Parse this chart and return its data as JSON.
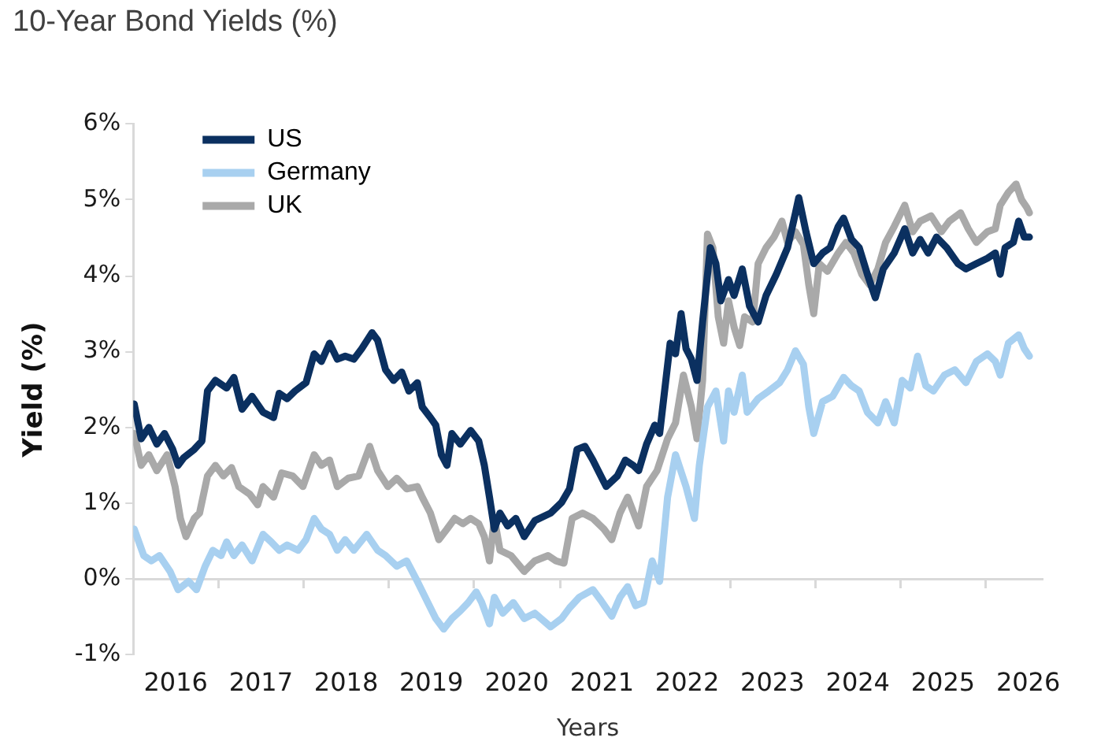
{
  "chart_data": {
    "type": "line",
    "title": "10-Year Bond Yields (%)",
    "xlabel": "Years",
    "ylabel": "Yield (%)",
    "xlim": [
      "2016-01-01",
      "2026-09-01"
    ],
    "xticks": [
      {
        "value": "2016-07-01",
        "label": "2016"
      },
      {
        "value": "2017-01-01",
        "label": null
      },
      {
        "value": "2017-07-01",
        "label": "2017"
      },
      {
        "value": "2018-01-01",
        "label": null
      },
      {
        "value": "2018-07-01",
        "label": "2018"
      },
      {
        "value": "2019-01-01",
        "label": null
      },
      {
        "value": "2019-07-01",
        "label": "2019"
      },
      {
        "value": "2020-01-01",
        "label": null
      },
      {
        "value": "2020-07-01",
        "label": "2020"
      },
      {
        "value": "2021-01-01",
        "label": null
      },
      {
        "value": "2021-07-01",
        "label": "2021"
      },
      {
        "value": "2022-01-01",
        "label": null
      },
      {
        "value": "2022-07-01",
        "label": "2022"
      },
      {
        "value": "2023-01-01",
        "label": null
      },
      {
        "value": "2023-07-01",
        "label": "2023"
      },
      {
        "value": "2024-01-01",
        "label": null
      },
      {
        "value": "2024-07-01",
        "label": "2024"
      },
      {
        "value": "2025-01-01",
        "label": null
      },
      {
        "value": "2025-07-01",
        "label": "2025"
      },
      {
        "value": "2026-01-01",
        "label": null
      },
      {
        "value": "2026-07-01",
        "label": "2026"
      }
    ],
    "ylim": [
      -1,
      6
    ],
    "yticks": [
      {
        "value": -1,
        "label": "-1%"
      },
      {
        "value": 0,
        "label": "0%"
      },
      {
        "value": 1,
        "label": "1%"
      },
      {
        "value": 2,
        "label": "2%"
      },
      {
        "value": 3,
        "label": "3%"
      },
      {
        "value": 4,
        "label": "4%"
      },
      {
        "value": 5,
        "label": "5%"
      },
      {
        "value": 6,
        "label": "6%"
      }
    ],
    "ref_lines": [
      {
        "axis": "y",
        "value": 0,
        "color": "#d9d9d9"
      }
    ],
    "legend": "top left",
    "series": [
      {
        "name": "US",
        "color": "#0b3060",
        "x": [
          "2016-01-05",
          "2016-02-04",
          "2016-03-08",
          "2016-04-11",
          "2016-05-14",
          "2016-06-18",
          "2016-07-11",
          "2016-08-04",
          "2016-09-18",
          "2016-10-21",
          "2016-11-14",
          "2016-12-18",
          "2017-02-04",
          "2017-03-07",
          "2017-04-11",
          "2017-05-24",
          "2017-07-10",
          "2017-08-24",
          "2017-09-17",
          "2017-10-21",
          "2017-11-24",
          "2018-01-10",
          "2018-02-14",
          "2018-03-17",
          "2018-04-21",
          "2018-05-24",
          "2018-06-27",
          "2018-08-03",
          "2018-09-06",
          "2018-10-20",
          "2018-11-13",
          "2018-12-17",
          "2019-01-20",
          "2019-02-24",
          "2019-03-27",
          "2019-05-02",
          "2019-05-23",
          "2019-06-27",
          "2019-07-20",
          "2019-08-13",
          "2019-09-06",
          "2019-09-27",
          "2019-11-02",
          "2019-12-16",
          "2020-01-20",
          "2020-02-13",
          "2020-03-06",
          "2020-03-27",
          "2020-04-20",
          "2020-05-23",
          "2020-06-27",
          "2020-08-02",
          "2020-09-16",
          "2020-11-23",
          "2021-01-09",
          "2021-02-12",
          "2021-03-16",
          "2021-04-19",
          "2021-05-23",
          "2021-07-19",
          "2021-09-05",
          "2021-10-09",
          "2021-11-12",
          "2021-12-05",
          "2022-01-08",
          "2022-02-12",
          "2022-03-05",
          "2022-04-19",
          "2022-05-12",
          "2022-06-05",
          "2022-06-26",
          "2022-07-19",
          "2022-08-12",
          "2022-09-05",
          "2022-10-08",
          "2022-11-01",
          "2022-11-22",
          "2022-12-25",
          "2023-01-18",
          "2023-02-22",
          "2023-03-25",
          "2023-05-01",
          "2023-06-04",
          "2023-07-18",
          "2023-09-04",
          "2023-10-08",
          "2023-10-22",
          "2023-11-22",
          "2023-12-25",
          "2024-02-01",
          "2024-03-04",
          "2024-04-08",
          "2024-05-01",
          "2024-06-04",
          "2024-07-07",
          "2024-08-11",
          "2024-09-14",
          "2024-10-18",
          "2024-12-04",
          "2025-01-18",
          "2025-02-21",
          "2025-03-25",
          "2025-04-28",
          "2025-06-03",
          "2025-07-17",
          "2025-09-03",
          "2025-10-07",
          "2025-11-21",
          "2026-01-07",
          "2026-02-10",
          "2026-03-03",
          "2026-03-24",
          "2026-04-28",
          "2026-05-21",
          "2026-06-14",
          "2026-07-06"
        ],
        "values": [
          2.31,
          1.85,
          2.0,
          1.78,
          1.92,
          1.71,
          1.5,
          1.6,
          1.71,
          1.82,
          2.48,
          2.62,
          2.52,
          2.66,
          2.24,
          2.41,
          2.2,
          2.13,
          2.45,
          2.38,
          2.48,
          2.59,
          2.97,
          2.87,
          3.11,
          2.9,
          2.94,
          2.9,
          3.04,
          3.25,
          3.15,
          2.76,
          2.62,
          2.73,
          2.48,
          2.59,
          2.27,
          2.13,
          2.03,
          1.64,
          1.5,
          1.92,
          1.78,
          1.96,
          1.82,
          1.5,
          1.08,
          0.66,
          0.87,
          0.7,
          0.8,
          0.56,
          0.77,
          0.87,
          1.01,
          1.19,
          1.71,
          1.75,
          1.57,
          1.22,
          1.36,
          1.57,
          1.5,
          1.43,
          1.78,
          2.03,
          1.92,
          3.11,
          2.97,
          3.5,
          3.04,
          2.9,
          2.62,
          3.39,
          4.37,
          4.16,
          3.67,
          3.95,
          3.74,
          4.09,
          3.6,
          3.39,
          3.74,
          4.02,
          4.37,
          4.83,
          5.03,
          4.58,
          4.16,
          4.3,
          4.37,
          4.65,
          4.76,
          4.48,
          4.37,
          4.02,
          3.71,
          4.09,
          4.3,
          4.62,
          4.3,
          4.48,
          4.3,
          4.51,
          4.37,
          4.16,
          4.09,
          4.16,
          4.23,
          4.3,
          4.02,
          4.37,
          4.44,
          4.72,
          4.51,
          4.51
        ]
      },
      {
        "name": "Germany",
        "color": "#a8d0f0",
        "x": [
          "2016-01-05",
          "2016-02-15",
          "2016-03-18",
          "2016-04-22",
          "2016-06-07",
          "2016-07-11",
          "2016-08-25",
          "2016-09-28",
          "2016-11-04",
          "2016-12-07",
          "2017-01-11",
          "2017-02-04",
          "2017-03-07",
          "2017-04-11",
          "2017-05-24",
          "2017-07-10",
          "2017-08-14",
          "2017-09-17",
          "2017-10-21",
          "2017-12-07",
          "2018-01-10",
          "2018-02-14",
          "2018-03-17",
          "2018-04-21",
          "2018-05-24",
          "2018-06-27",
          "2018-08-03",
          "2018-09-27",
          "2018-11-13",
          "2018-12-17",
          "2019-02-03",
          "2019-03-17",
          "2019-05-02",
          "2019-06-16",
          "2019-07-20",
          "2019-08-23",
          "2019-09-27",
          "2019-11-02",
          "2019-12-06",
          "2020-01-09",
          "2020-02-02",
          "2020-03-06",
          "2020-03-27",
          "2020-05-02",
          "2020-06-16",
          "2020-08-02",
          "2020-09-16",
          "2020-11-23",
          "2021-01-09",
          "2021-02-12",
          "2021-03-26",
          "2021-05-23",
          "2021-06-26",
          "2021-08-12",
          "2021-09-16",
          "2021-10-19",
          "2021-11-22",
          "2021-12-26",
          "2022-02-01",
          "2022-03-05",
          "2022-04-08",
          "2022-05-12",
          "2022-06-26",
          "2022-08-01",
          "2022-08-22",
          "2022-09-26",
          "2022-11-01",
          "2022-12-04",
          "2022-12-25",
          "2023-01-18",
          "2023-02-22",
          "2023-03-15",
          "2023-05-01",
          "2023-06-15",
          "2023-08-01",
          "2023-09-04",
          "2023-10-08",
          "2023-11-11",
          "2023-12-04",
          "2023-12-25",
          "2024-02-01",
          "2024-03-15",
          "2024-05-01",
          "2024-06-04",
          "2024-07-07",
          "2024-08-11",
          "2024-09-25",
          "2024-10-28",
          "2024-12-04",
          "2025-01-07",
          "2025-02-11",
          "2025-03-14",
          "2025-04-18",
          "2025-05-21",
          "2025-07-07",
          "2025-08-21",
          "2025-10-07",
          "2025-11-21",
          "2026-01-07",
          "2026-02-10",
          "2026-03-03",
          "2026-04-07",
          "2026-05-21",
          "2026-06-14",
          "2026-07-06"
        ],
        "values": [
          0.66,
          0.31,
          0.24,
          0.31,
          0.1,
          -0.14,
          -0.03,
          -0.14,
          0.17,
          0.38,
          0.31,
          0.49,
          0.31,
          0.45,
          0.24,
          0.59,
          0.49,
          0.38,
          0.45,
          0.38,
          0.52,
          0.8,
          0.66,
          0.59,
          0.38,
          0.52,
          0.38,
          0.59,
          0.38,
          0.31,
          0.17,
          0.24,
          -0.03,
          -0.31,
          -0.52,
          -0.66,
          -0.52,
          -0.42,
          -0.31,
          -0.17,
          -0.31,
          -0.59,
          -0.24,
          -0.45,
          -0.31,
          -0.52,
          -0.45,
          -0.63,
          -0.52,
          -0.38,
          -0.24,
          -0.14,
          -0.28,
          -0.49,
          -0.24,
          -0.1,
          -0.35,
          -0.31,
          0.24,
          -0.03,
          1.08,
          1.64,
          1.22,
          0.8,
          1.5,
          2.27,
          2.48,
          1.82,
          2.48,
          2.2,
          2.69,
          2.2,
          2.38,
          2.48,
          2.59,
          2.76,
          3.01,
          2.83,
          2.27,
          1.92,
          2.34,
          2.41,
          2.66,
          2.55,
          2.48,
          2.2,
          2.06,
          2.34,
          2.06,
          2.62,
          2.52,
          2.94,
          2.55,
          2.48,
          2.69,
          2.76,
          2.59,
          2.87,
          2.97,
          2.87,
          2.69,
          3.11,
          3.22,
          3.04,
          2.94
        ]
      },
      {
        "name": "UK",
        "color": "#a9a9a9",
        "x": [
          "2016-01-05",
          "2016-02-04",
          "2016-03-08",
          "2016-04-11",
          "2016-05-25",
          "2016-06-28",
          "2016-07-21",
          "2016-08-14",
          "2016-09-18",
          "2016-10-11",
          "2016-11-14",
          "2016-12-18",
          "2017-01-21",
          "2017-02-25",
          "2017-03-28",
          "2017-05-14",
          "2017-06-17",
          "2017-07-10",
          "2017-08-24",
          "2017-09-28",
          "2017-11-14",
          "2017-12-28",
          "2018-02-14",
          "2018-03-17",
          "2018-04-21",
          "2018-05-24",
          "2018-07-10",
          "2018-08-24",
          "2018-10-10",
          "2018-11-13",
          "2018-12-27",
          "2019-02-03",
          "2019-03-17",
          "2019-05-02",
          "2019-05-23",
          "2019-06-27",
          "2019-08-02",
          "2019-09-06",
          "2019-10-09",
          "2019-11-13",
          "2019-12-16",
          "2020-01-20",
          "2020-02-13",
          "2020-03-06",
          "2020-03-27",
          "2020-04-20",
          "2020-06-06",
          "2020-08-02",
          "2020-09-16",
          "2020-11-12",
          "2020-12-16",
          "2021-01-19",
          "2021-02-23",
          "2021-04-09",
          "2021-05-23",
          "2021-07-09",
          "2021-08-12",
          "2021-09-16",
          "2021-10-19",
          "2021-12-05",
          "2022-01-08",
          "2022-02-22",
          "2022-04-08",
          "2022-05-12",
          "2022-06-15",
          "2022-07-19",
          "2022-08-12",
          "2022-09-05",
          "2022-09-26",
          "2022-10-19",
          "2022-11-11",
          "2022-12-04",
          "2022-12-25",
          "2023-01-18",
          "2023-02-11",
          "2023-03-04",
          "2023-04-08",
          "2023-05-01",
          "2023-06-04",
          "2023-07-08",
          "2023-08-11",
          "2023-09-04",
          "2023-10-08",
          "2023-11-11",
          "2023-12-04",
          "2023-12-25",
          "2024-01-18",
          "2024-02-22",
          "2024-04-08",
          "2024-05-11",
          "2024-06-14",
          "2024-07-18",
          "2024-08-21",
          "2024-09-25",
          "2024-10-28",
          "2024-12-04",
          "2025-01-18",
          "2025-02-21",
          "2025-03-25",
          "2025-05-11",
          "2025-06-24",
          "2025-07-28",
          "2025-09-14",
          "2025-10-17",
          "2025-11-21",
          "2026-01-07",
          "2026-02-10",
          "2026-03-03",
          "2026-04-07",
          "2026-05-10",
          "2026-06-03",
          "2026-06-25",
          "2026-07-06"
        ],
        "values": [
          1.92,
          1.5,
          1.64,
          1.43,
          1.64,
          1.22,
          0.8,
          0.56,
          0.8,
          0.87,
          1.36,
          1.5,
          1.36,
          1.47,
          1.22,
          1.12,
          0.98,
          1.22,
          1.08,
          1.4,
          1.36,
          1.22,
          1.64,
          1.5,
          1.57,
          1.22,
          1.33,
          1.36,
          1.75,
          1.43,
          1.22,
          1.33,
          1.19,
          1.22,
          1.08,
          0.87,
          0.52,
          0.66,
          0.8,
          0.73,
          0.8,
          0.73,
          0.56,
          0.24,
          0.8,
          0.38,
          0.31,
          0.1,
          0.24,
          0.31,
          0.24,
          0.21,
          0.8,
          0.87,
          0.8,
          0.66,
          0.52,
          0.87,
          1.08,
          0.7,
          1.22,
          1.43,
          1.85,
          2.06,
          2.69,
          2.27,
          1.85,
          2.62,
          4.55,
          4.37,
          3.46,
          3.11,
          3.67,
          3.32,
          3.08,
          3.46,
          3.39,
          4.16,
          4.37,
          4.51,
          4.72,
          4.44,
          4.58,
          4.41,
          3.88,
          3.5,
          4.16,
          4.06,
          4.3,
          4.44,
          4.3,
          4.02,
          3.88,
          4.09,
          4.44,
          4.65,
          4.93,
          4.58,
          4.72,
          4.79,
          4.58,
          4.72,
          4.83,
          4.62,
          4.44,
          4.58,
          4.62,
          4.93,
          5.1,
          5.21,
          5.0,
          4.9,
          4.83
        ]
      }
    ]
  }
}
